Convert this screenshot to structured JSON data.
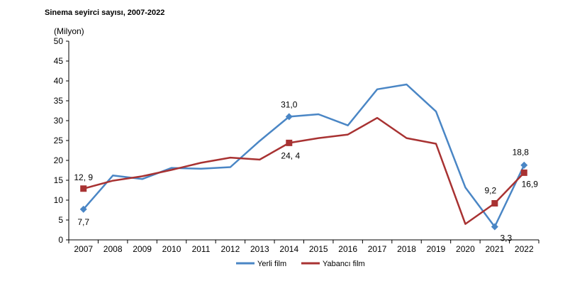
{
  "title": "Sinema seyirci sayısı, 2007-2022",
  "colors": {
    "yerli": "#4a86c5",
    "yabanci": "#a83232",
    "axis": "#000000"
  },
  "chart_data": {
    "type": "line",
    "title": "Sinema seyirci sayısı, 2007-2022",
    "unit_label": "(Milyon)",
    "xlabel": "",
    "ylabel": "",
    "ylim": [
      0,
      50
    ],
    "yticks": [
      "0",
      "5",
      "10",
      "15",
      "20",
      "25",
      "30",
      "35",
      "40",
      "45",
      "50"
    ],
    "categories": [
      "2007",
      "2008",
      "2009",
      "2010",
      "2011",
      "2012",
      "2013",
      "2014",
      "2015",
      "2016",
      "2017",
      "2018",
      "2019",
      "2020",
      "2021",
      "2022"
    ],
    "series": [
      {
        "name": "Yerli film",
        "color": "#4a86c5",
        "marker": "diamond",
        "values": [
          7.7,
          16.2,
          15.3,
          18.1,
          17.9,
          18.3,
          24.9,
          31.0,
          31.6,
          28.8,
          37.9,
          39.1,
          32.3,
          13.2,
          3.3,
          18.8
        ]
      },
      {
        "name": "Yabancı film",
        "color": "#a83232",
        "marker": "square",
        "values": [
          12.9,
          14.9,
          16.0,
          17.6,
          19.4,
          20.7,
          20.2,
          24.4,
          25.6,
          26.5,
          30.7,
          25.6,
          24.2,
          4.0,
          9.2,
          16.9
        ]
      }
    ],
    "data_labels": [
      {
        "series": 1,
        "index": 0,
        "text": "12, 9"
      },
      {
        "series": 0,
        "index": 0,
        "text": "7,7"
      },
      {
        "series": 0,
        "index": 7,
        "text": "31,0"
      },
      {
        "series": 1,
        "index": 7,
        "text": "24, 4"
      },
      {
        "series": 1,
        "index": 14,
        "text": "9,2"
      },
      {
        "series": 0,
        "index": 14,
        "text": "3,3"
      },
      {
        "series": 0,
        "index": 15,
        "text": "18,8"
      },
      {
        "series": 1,
        "index": 15,
        "text": "16,9"
      }
    ],
    "legend": {
      "position": "bottom-center"
    },
    "grid": false
  }
}
